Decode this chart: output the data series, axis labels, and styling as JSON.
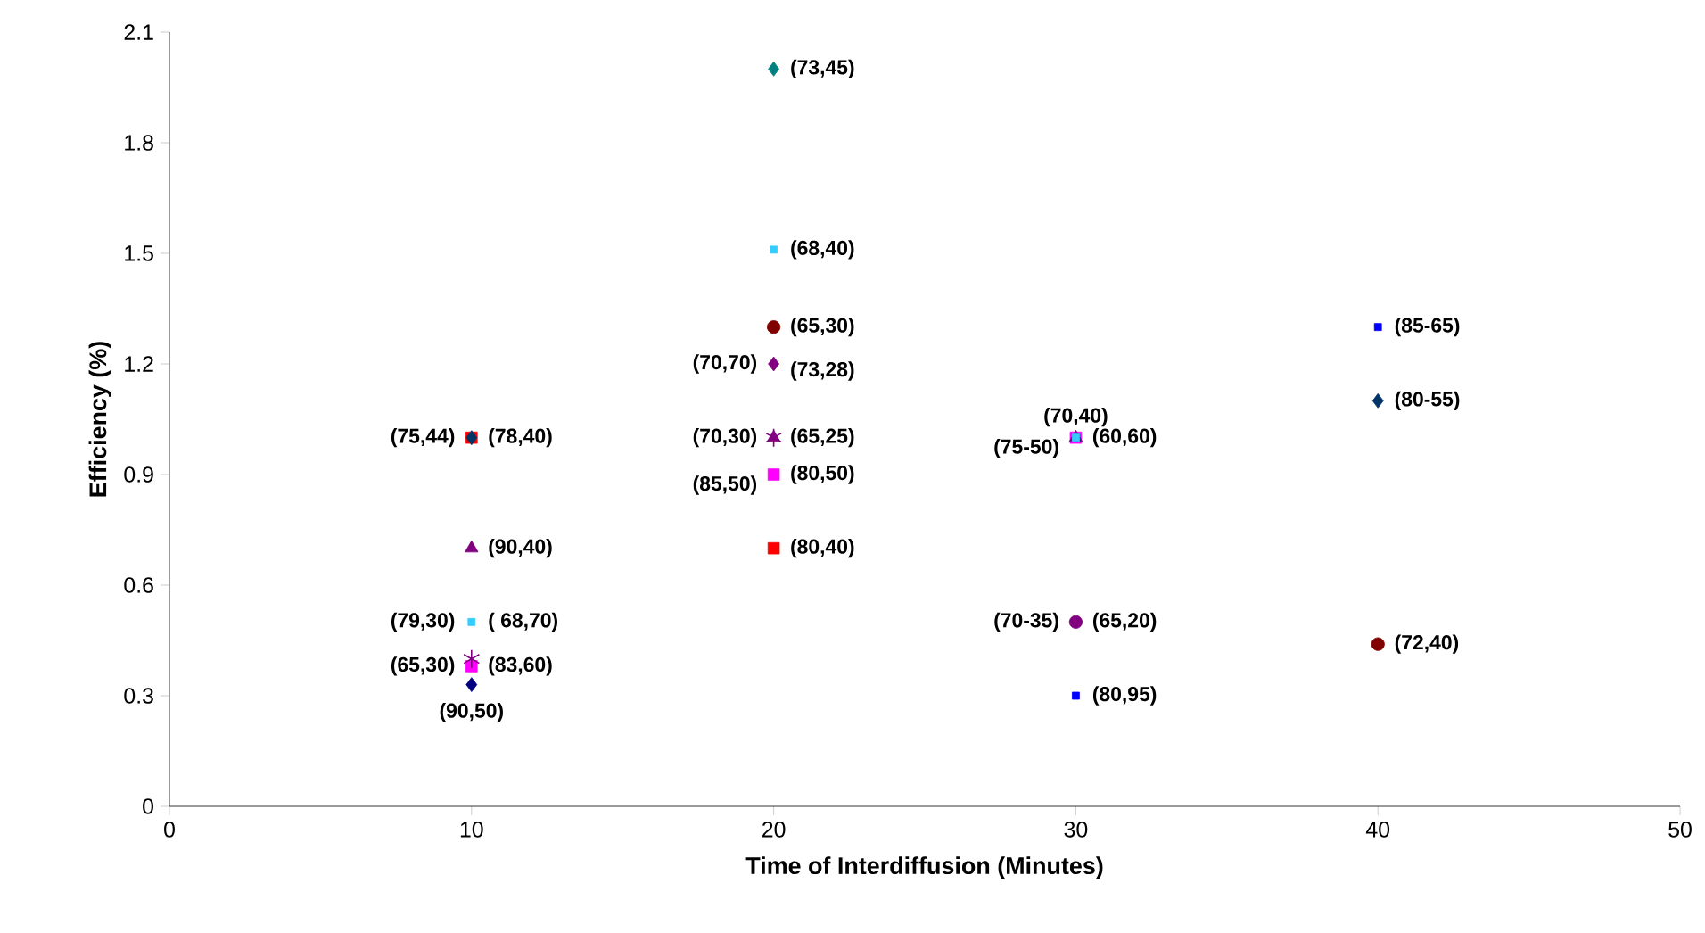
{
  "chart_data": {
    "type": "scatter",
    "xlabel": "Time of Interdiffusion (Minutes)",
    "ylabel": "Efficiency (%)",
    "xlim": [
      0,
      50
    ],
    "ylim": [
      0,
      2.1
    ],
    "xticks": [
      0,
      10,
      20,
      30,
      40,
      50
    ],
    "yticks": [
      0,
      0.3,
      0.6,
      0.9,
      1.2,
      1.5,
      1.8,
      2.1
    ],
    "grid": false,
    "series": [
      {
        "color": "#ff0000",
        "marker": "square",
        "x": [
          10,
          20
        ],
        "values": [
          1.0,
          0.7
        ]
      },
      {
        "color": "#ff00ff",
        "marker": "square",
        "x": [
          10,
          20,
          30
        ],
        "values": [
          0.38,
          0.9,
          1.0
        ]
      },
      {
        "color": "#000080",
        "marker": "diamond",
        "x": [
          10
        ],
        "values": [
          0.33
        ]
      },
      {
        "color": "#003366",
        "marker": "diamond",
        "x": [
          10,
          40
        ],
        "values": [
          1.0,
          1.1
        ]
      },
      {
        "color": "#800080",
        "marker": "triangle",
        "x": [
          10,
          20,
          30
        ],
        "values": [
          0.7,
          1.0,
          1.0
        ]
      },
      {
        "color": "#800080",
        "marker": "cross",
        "x": [
          10,
          20
        ],
        "values": [
          0.4,
          1.0
        ]
      },
      {
        "color": "#33ccff",
        "marker": "square",
        "x": [
          10,
          20,
          30
        ],
        "values": [
          0.5,
          1.51,
          1.0
        ]
      },
      {
        "color": "#008080",
        "marker": "diamond",
        "x": [
          20
        ],
        "values": [
          2.0
        ]
      },
      {
        "color": "#800000",
        "marker": "circle",
        "x": [
          20,
          40
        ],
        "values": [
          1.3,
          0.44
        ]
      },
      {
        "color": "#800080",
        "marker": "diamond",
        "x": [
          20
        ],
        "values": [
          1.2
        ]
      },
      {
        "color": "#800080",
        "marker": "circle",
        "x": [
          30
        ],
        "values": [
          0.5
        ]
      },
      {
        "color": "#0000ff",
        "marker": "square",
        "x": [
          30,
          40
        ],
        "values": [
          0.3,
          1.3
        ]
      }
    ],
    "annotations": [
      {
        "text": "(73,45)",
        "x": 20,
        "y": 2.0
      },
      {
        "text": "(68,40)",
        "x": 20,
        "y": 1.51
      },
      {
        "text": "(65,30)",
        "x": 20,
        "y": 1.3
      },
      {
        "text": "(70,70)",
        "x": 20,
        "y": 1.2
      },
      {
        "text": "(73,28)",
        "x": 20,
        "y": 1.2
      },
      {
        "text": "(70,30)",
        "x": 20,
        "y": 1.0
      },
      {
        "text": "(65,25)",
        "x": 20,
        "y": 1.0
      },
      {
        "text": "(85,50)",
        "x": 20,
        "y": 0.9
      },
      {
        "text": "(80,50)",
        "x": 20,
        "y": 0.9
      },
      {
        "text": "(80,40)",
        "x": 20,
        "y": 0.7
      },
      {
        "text": "(75,44)",
        "x": 10,
        "y": 1.0
      },
      {
        "text": "(78,40)",
        "x": 10,
        "y": 1.0
      },
      {
        "text": "(90,40)",
        "x": 10,
        "y": 0.7
      },
      {
        "text": "(79,30)",
        "x": 10,
        "y": 0.5
      },
      {
        "text": "( 68,70)",
        "x": 10,
        "y": 0.5
      },
      {
        "text": "(65,30)",
        "x": 10,
        "y": 0.38
      },
      {
        "text": "(83,60)",
        "x": 10,
        "y": 0.38
      },
      {
        "text": "(90,50)",
        "x": 10,
        "y": 0.33
      },
      {
        "text": "(70,40)",
        "x": 30,
        "y": 1.0
      },
      {
        "text": "(75-50)",
        "x": 30,
        "y": 1.0
      },
      {
        "text": "(60,60)",
        "x": 30,
        "y": 1.0
      },
      {
        "text": "(70-35)",
        "x": 30,
        "y": 0.5
      },
      {
        "text": "(65,20)",
        "x": 30,
        "y": 0.5
      },
      {
        "text": "(80,95)",
        "x": 30,
        "y": 0.3
      },
      {
        "text": "(85-65)",
        "x": 40,
        "y": 1.3
      },
      {
        "text": "(80-55)",
        "x": 40,
        "y": 1.1
      },
      {
        "text": "(72,40)",
        "x": 40,
        "y": 0.44
      }
    ]
  }
}
